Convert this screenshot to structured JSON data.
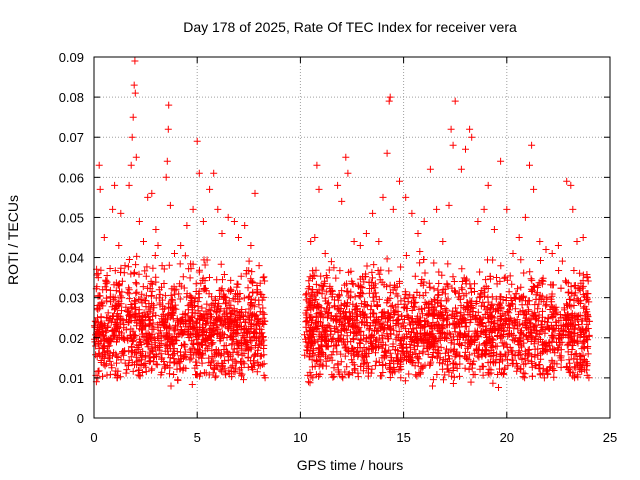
{
  "chart_data": {
    "type": "scatter",
    "title": "Day 178 of 2025, Rate Of TEC Index for receiver vera",
    "xlabel": "GPS time / hours",
    "ylabel": "ROTI / TECUs",
    "xlim": [
      0,
      25
    ],
    "ylim": [
      0,
      0.09
    ],
    "x_ticks": [
      "0",
      "5",
      "10",
      "15",
      "20",
      "25"
    ],
    "y_ticks": [
      "0",
      "0.01",
      "0.02",
      "0.03",
      "0.04",
      "0.05",
      "0.06",
      "0.07",
      "0.08",
      "0.09"
    ],
    "grid": true,
    "marker": "+",
    "color": "#ff0000",
    "data_gap_hours": [
      8.3,
      10.2
    ],
    "series": [
      {
        "points": [
          [
            0.1,
            0.024
          ],
          [
            0.2,
            0.036
          ],
          [
            0.25,
            0.063
          ],
          [
            0.3,
            0.057
          ],
          [
            0.5,
            0.045
          ],
          [
            0.6,
            0.032
          ],
          [
            0.8,
            0.029
          ],
          [
            0.9,
            0.052
          ],
          [
            1.0,
            0.058
          ],
          [
            1.2,
            0.043
          ],
          [
            1.3,
            0.051
          ],
          [
            1.5,
            0.038
          ],
          [
            1.7,
            0.058
          ],
          [
            1.8,
            0.063
          ],
          [
            1.85,
            0.07
          ],
          [
            1.9,
            0.075
          ],
          [
            1.95,
            0.083
          ],
          [
            1.98,
            0.089
          ],
          [
            2.0,
            0.081
          ],
          [
            2.05,
            0.065
          ],
          [
            2.2,
            0.049
          ],
          [
            2.4,
            0.044
          ],
          [
            2.6,
            0.055
          ],
          [
            2.8,
            0.056
          ],
          [
            3.0,
            0.047
          ],
          [
            3.1,
            0.043
          ],
          [
            3.3,
            0.038
          ],
          [
            3.5,
            0.06
          ],
          [
            3.55,
            0.064
          ],
          [
            3.6,
            0.072
          ],
          [
            3.62,
            0.078
          ],
          [
            3.7,
            0.053
          ],
          [
            3.9,
            0.041
          ],
          [
            4.2,
            0.043
          ],
          [
            4.5,
            0.048
          ],
          [
            4.8,
            0.052
          ],
          [
            5.0,
            0.069
          ],
          [
            5.1,
            0.061
          ],
          [
            5.3,
            0.049
          ],
          [
            5.6,
            0.057
          ],
          [
            5.8,
            0.061
          ],
          [
            6.0,
            0.052
          ],
          [
            6.2,
            0.046
          ],
          [
            6.5,
            0.05
          ],
          [
            6.8,
            0.049
          ],
          [
            7.0,
            0.045
          ],
          [
            7.3,
            0.048
          ],
          [
            7.6,
            0.043
          ],
          [
            7.8,
            0.056
          ],
          [
            8.0,
            0.038
          ],
          [
            8.2,
            0.035
          ],
          [
            10.3,
            0.031
          ],
          [
            10.5,
            0.044
          ],
          [
            10.7,
            0.045
          ],
          [
            10.8,
            0.063
          ],
          [
            10.9,
            0.057
          ],
          [
            11.2,
            0.041
          ],
          [
            11.5,
            0.039
          ],
          [
            11.8,
            0.058
          ],
          [
            12.0,
            0.054
          ],
          [
            12.2,
            0.065
          ],
          [
            12.3,
            0.061
          ],
          [
            12.6,
            0.044
          ],
          [
            12.9,
            0.043
          ],
          [
            13.2,
            0.046
          ],
          [
            13.5,
            0.051
          ],
          [
            13.8,
            0.044
          ],
          [
            14.0,
            0.055
          ],
          [
            14.2,
            0.066
          ],
          [
            14.3,
            0.079
          ],
          [
            14.35,
            0.08
          ],
          [
            14.5,
            0.052
          ],
          [
            14.8,
            0.059
          ],
          [
            15.1,
            0.055
          ],
          [
            15.4,
            0.051
          ],
          [
            15.7,
            0.046
          ],
          [
            16.0,
            0.049
          ],
          [
            16.3,
            0.062
          ],
          [
            16.6,
            0.052
          ],
          [
            16.9,
            0.044
          ],
          [
            17.2,
            0.053
          ],
          [
            17.3,
            0.072
          ],
          [
            17.4,
            0.068
          ],
          [
            17.5,
            0.079
          ],
          [
            17.8,
            0.062
          ],
          [
            18.0,
            0.067
          ],
          [
            18.2,
            0.072
          ],
          [
            18.3,
            0.07
          ],
          [
            18.6,
            0.049
          ],
          [
            18.9,
            0.052
          ],
          [
            19.1,
            0.058
          ],
          [
            19.4,
            0.047
          ],
          [
            19.7,
            0.064
          ],
          [
            20.0,
            0.052
          ],
          [
            20.3,
            0.041
          ],
          [
            20.6,
            0.045
          ],
          [
            20.9,
            0.05
          ],
          [
            21.1,
            0.063
          ],
          [
            21.2,
            0.068
          ],
          [
            21.3,
            0.057
          ],
          [
            21.6,
            0.044
          ],
          [
            21.9,
            0.042
          ],
          [
            22.2,
            0.041
          ],
          [
            22.5,
            0.043
          ],
          [
            22.9,
            0.059
          ],
          [
            23.1,
            0.058
          ],
          [
            23.2,
            0.052
          ],
          [
            23.4,
            0.044
          ],
          [
            23.7,
            0.045
          ],
          [
            23.9,
            0.035
          ]
        ]
      }
    ],
    "dense_band": {
      "segments": [
        [
          0.0,
          8.3
        ],
        [
          10.2,
          24.0
        ]
      ],
      "typical_min": 0.006,
      "typical_max": 0.042,
      "center": 0.018
    }
  }
}
